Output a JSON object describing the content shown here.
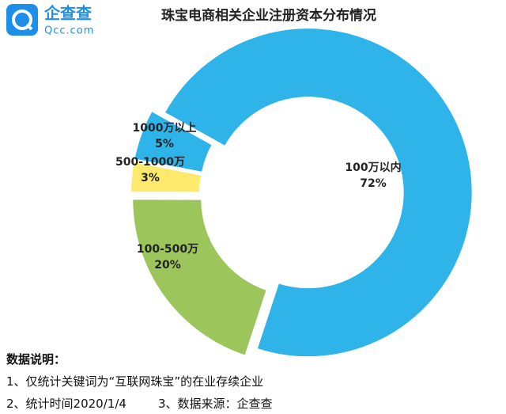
{
  "logo": {
    "name": "企查查",
    "site": "Qcc.com"
  },
  "chart_data": {
    "type": "donut",
    "title": "珠宝电商相关企业注册资本分布情况",
    "categories": [
      "100万以内",
      "100-500万",
      "500-1000万",
      "1000万以上"
    ],
    "values": [
      72,
      20,
      3,
      5
    ],
    "value_labels": [
      "72%",
      "20%",
      "3%",
      "5%"
    ],
    "colors": [
      "#2fb4ea",
      "#9cc55c",
      "#fde96c",
      "#2fb4ea"
    ]
  },
  "notes": {
    "heading": "数据说明：",
    "line1": "1、仅统计关键词为“互联网珠宝”的在业存续企业",
    "line2": "2、统计时间2020/1/4",
    "line3": "3、数据来源：企查查"
  }
}
